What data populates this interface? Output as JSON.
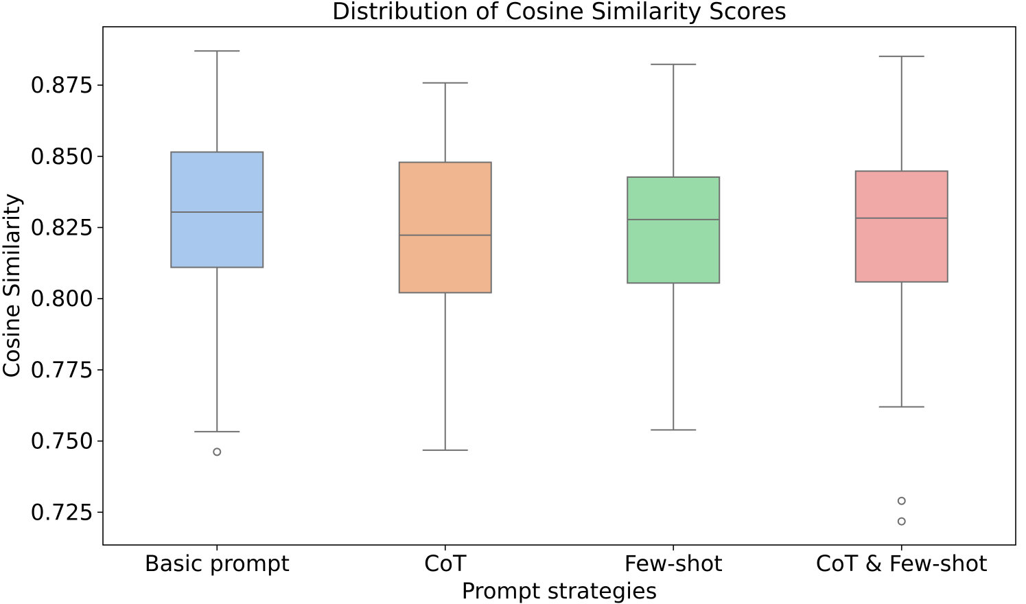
{
  "chart_data": {
    "type": "box",
    "title": "Distribution of Cosine Similarity Scores",
    "xlabel": "Prompt strategies",
    "ylabel": "Cosine Similarity",
    "ylim": [
      0.7135,
      0.8955
    ],
    "yticks": [
      0.725,
      0.75,
      0.775,
      0.8,
      0.825,
      0.85,
      0.875
    ],
    "ytick_labels": [
      "0.725",
      "0.750",
      "0.775",
      "0.800",
      "0.825",
      "0.850",
      "0.875"
    ],
    "grid": false,
    "categories": [
      "Basic prompt",
      "CoT",
      "Few-shot",
      "CoT & Few-shot"
    ],
    "series": [
      {
        "category": "Basic prompt",
        "color": "#a8c8ee",
        "whisker_low": 0.7533,
        "q1": 0.811,
        "median": 0.8304,
        "q3": 0.8515,
        "whisker_high": 0.887,
        "outliers": [
          0.7462
        ]
      },
      {
        "category": "CoT",
        "color": "#f0b690",
        "whisker_low": 0.7468,
        "q1": 0.8021,
        "median": 0.8223,
        "q3": 0.8479,
        "whisker_high": 0.8758,
        "outliers": []
      },
      {
        "category": "Few-shot",
        "color": "#98dba8",
        "whisker_low": 0.7539,
        "q1": 0.8055,
        "median": 0.8278,
        "q3": 0.8427,
        "whisker_high": 0.8823,
        "outliers": []
      },
      {
        "category": "CoT & Few-shot",
        "color": "#f1a9a8",
        "whisker_low": 0.762,
        "q1": 0.8059,
        "median": 0.8283,
        "q3": 0.8448,
        "whisker_high": 0.8851,
        "outliers": [
          0.729,
          0.7218
        ]
      }
    ]
  }
}
